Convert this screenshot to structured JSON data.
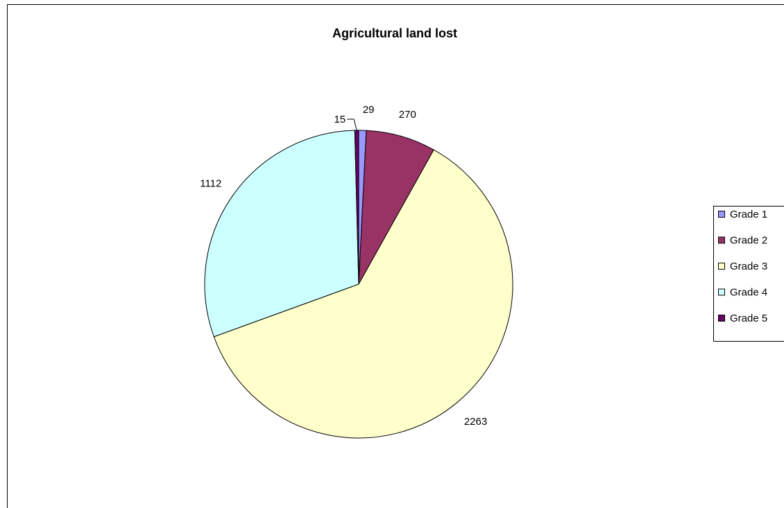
{
  "chart_data": {
    "type": "pie",
    "title": "Agricultural land lost",
    "categories": [
      "Grade 1",
      "Grade 2",
      "Grade 3",
      "Grade 4",
      "Grade 5"
    ],
    "values": [
      29,
      270,
      2263,
      1112,
      15
    ],
    "colors": [
      "#9999ff",
      "#993366",
      "#ffffcc",
      "#ccffff",
      "#660066"
    ],
    "data_labels": [
      "29",
      "270",
      "2263",
      "1112",
      "15"
    ],
    "legend_position": "right",
    "start_angle_deg": 0,
    "direction": "clockwise"
  }
}
